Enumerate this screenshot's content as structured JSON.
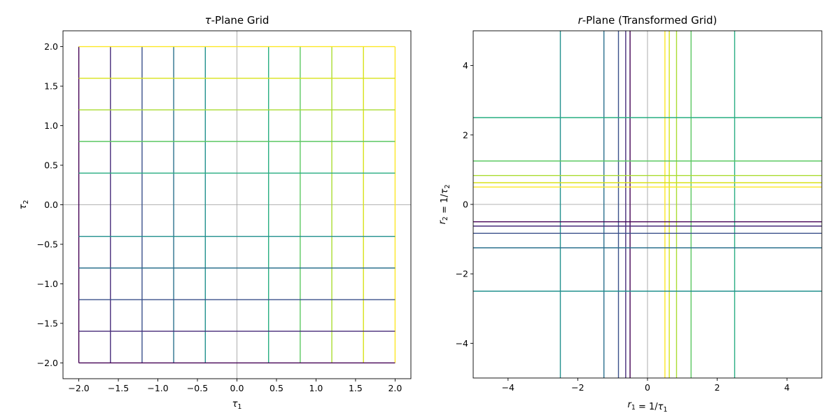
{
  "chart_data": [
    {
      "type": "line",
      "title_parts": [
        [
          "τ",
          true
        ],
        [
          "-Plane Grid",
          false
        ]
      ],
      "xlabel_parts": [
        [
          "τ",
          true
        ],
        [
          "1",
          "sub"
        ]
      ],
      "ylabel_parts": [
        [
          "τ",
          true
        ],
        [
          "2",
          "sub"
        ]
      ],
      "xlim": [
        -2.2,
        2.2
      ],
      "ylim": [
        -2.2,
        2.2
      ],
      "xticks": [
        -2.0,
        -1.5,
        -1.0,
        -0.5,
        0.0,
        0.5,
        1.0,
        1.5,
        2.0
      ],
      "yticks": [
        -2.0,
        -1.5,
        -1.0,
        -0.5,
        0.0,
        0.5,
        1.0,
        1.5,
        2.0
      ],
      "xtick_labels": [
        "−2.0",
        "−1.5",
        "−1.0",
        "−0.5",
        "0.0",
        "0.5",
        "1.0",
        "1.5",
        "2.0"
      ],
      "ytick_labels": [
        "−2.0",
        "−1.5",
        "−1.0",
        "−0.5",
        "0.0",
        "0.5",
        "1.0",
        "1.5",
        "2.0"
      ],
      "reference_lines": {
        "x": 0,
        "y": 0
      },
      "colormap": "viridis",
      "vertical_lines": {
        "x": [
          -2.0,
          -1.6,
          -1.2,
          -0.8,
          -0.4,
          0.4,
          0.8,
          1.2,
          1.6,
          2.0
        ],
        "y_range": [
          -2.0,
          2.0
        ],
        "colors": [
          "#440154",
          "#472c7a",
          "#3b518b",
          "#2c718e",
          "#21908d",
          "#27ad81",
          "#5cc863",
          "#aadc32",
          "#d8e219",
          "#fde725"
        ]
      },
      "horizontal_lines": {
        "y": [
          -2.0,
          -1.6,
          -1.2,
          -0.8,
          -0.4,
          0.4,
          0.8,
          1.2,
          1.6,
          2.0
        ],
        "x_range": [
          -2.0,
          2.0
        ],
        "colors": [
          "#440154",
          "#472c7a",
          "#3b518b",
          "#2c718e",
          "#21908d",
          "#27ad81",
          "#5cc863",
          "#aadc32",
          "#d8e219",
          "#fde725"
        ]
      }
    },
    {
      "type": "line",
      "title_parts": [
        [
          "r",
          true
        ],
        [
          "-Plane (Transformed Grid)",
          false
        ]
      ],
      "xlabel_parts": [
        [
          "r",
          true
        ],
        [
          "1",
          "sub"
        ],
        [
          " = 1/",
          false
        ],
        [
          "τ",
          true
        ],
        [
          "1",
          "sub"
        ]
      ],
      "ylabel_parts": [
        [
          "r",
          true
        ],
        [
          "2",
          "sub"
        ],
        [
          " = 1/",
          false
        ],
        [
          "τ",
          true
        ],
        [
          "2",
          "sub"
        ]
      ],
      "xlim": [
        -5,
        5
      ],
      "ylim": [
        -5,
        5
      ],
      "xticks": [
        -4,
        -2,
        0,
        2,
        4
      ],
      "yticks": [
        -4,
        -2,
        0,
        2,
        4
      ],
      "xtick_labels": [
        "−4",
        "−2",
        "0",
        "2",
        "4"
      ],
      "ytick_labels": [
        "−4",
        "−2",
        "0",
        "2",
        "4"
      ],
      "reference_lines": {
        "x": 0,
        "y": 0
      },
      "colormap": "viridis",
      "vertical_lines": {
        "x": [
          -0.5,
          -0.625,
          -0.833,
          -1.25,
          -2.5,
          2.5,
          1.25,
          0.833,
          0.625,
          0.5
        ],
        "y_range": [
          -5,
          5
        ],
        "colors": [
          "#440154",
          "#472c7a",
          "#3b518b",
          "#2c718e",
          "#21908d",
          "#27ad81",
          "#5cc863",
          "#aadc32",
          "#d8e219",
          "#fde725"
        ]
      },
      "horizontal_lines": {
        "y": [
          -0.5,
          -0.625,
          -0.833,
          -1.25,
          -2.5,
          2.5,
          1.25,
          0.833,
          0.625,
          0.5
        ],
        "x_range": [
          -5,
          5
        ],
        "colors": [
          "#440154",
          "#472c7a",
          "#3b518b",
          "#2c718e",
          "#21908d",
          "#27ad81",
          "#5cc863",
          "#aadc32",
          "#d8e219",
          "#fde725"
        ]
      }
    }
  ]
}
